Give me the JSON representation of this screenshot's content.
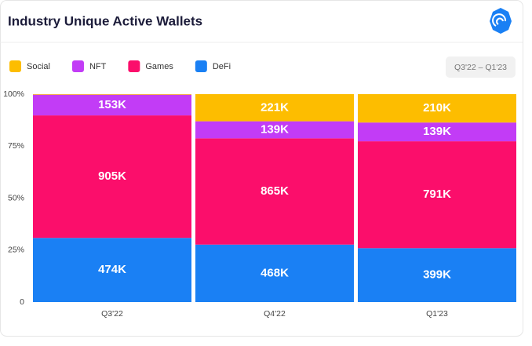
{
  "chart_data": {
    "type": "bar",
    "stacking": "percent",
    "title": "Industry Unique Active Wallets",
    "range_button": "Q3'22 – Q1'23",
    "categories": [
      "Q3'22",
      "Q4'22",
      "Q1'23"
    ],
    "series": [
      {
        "name": "Social",
        "color": "#fdbd00",
        "values": [
          4000,
          221000,
          210000
        ],
        "value_labels": [
          null,
          "221K",
          "210K"
        ]
      },
      {
        "name": "NFT",
        "color": "#c23cf6",
        "values": [
          153000,
          139000,
          139000
        ],
        "value_labels": [
          "153K",
          "139K",
          "139K"
        ]
      },
      {
        "name": "Games",
        "color": "#fb0e6b",
        "values": [
          905000,
          865000,
          791000
        ],
        "value_labels": [
          "905K",
          "865K",
          "791K"
        ]
      },
      {
        "name": "DeFi",
        "color": "#1a80f4",
        "values": [
          474000,
          468000,
          399000
        ],
        "value_labels": [
          "474K",
          "468K",
          "399K"
        ]
      }
    ],
    "ylim": [
      0,
      100
    ],
    "yticks": [
      0,
      {
        "value": 25,
        "label": "25%"
      },
      {
        "value": 50,
        "label": "50%"
      },
      {
        "value": 75,
        "label": "75%"
      },
      {
        "value": 100,
        "label": "100%"
      }
    ],
    "legend": "top-left"
  }
}
